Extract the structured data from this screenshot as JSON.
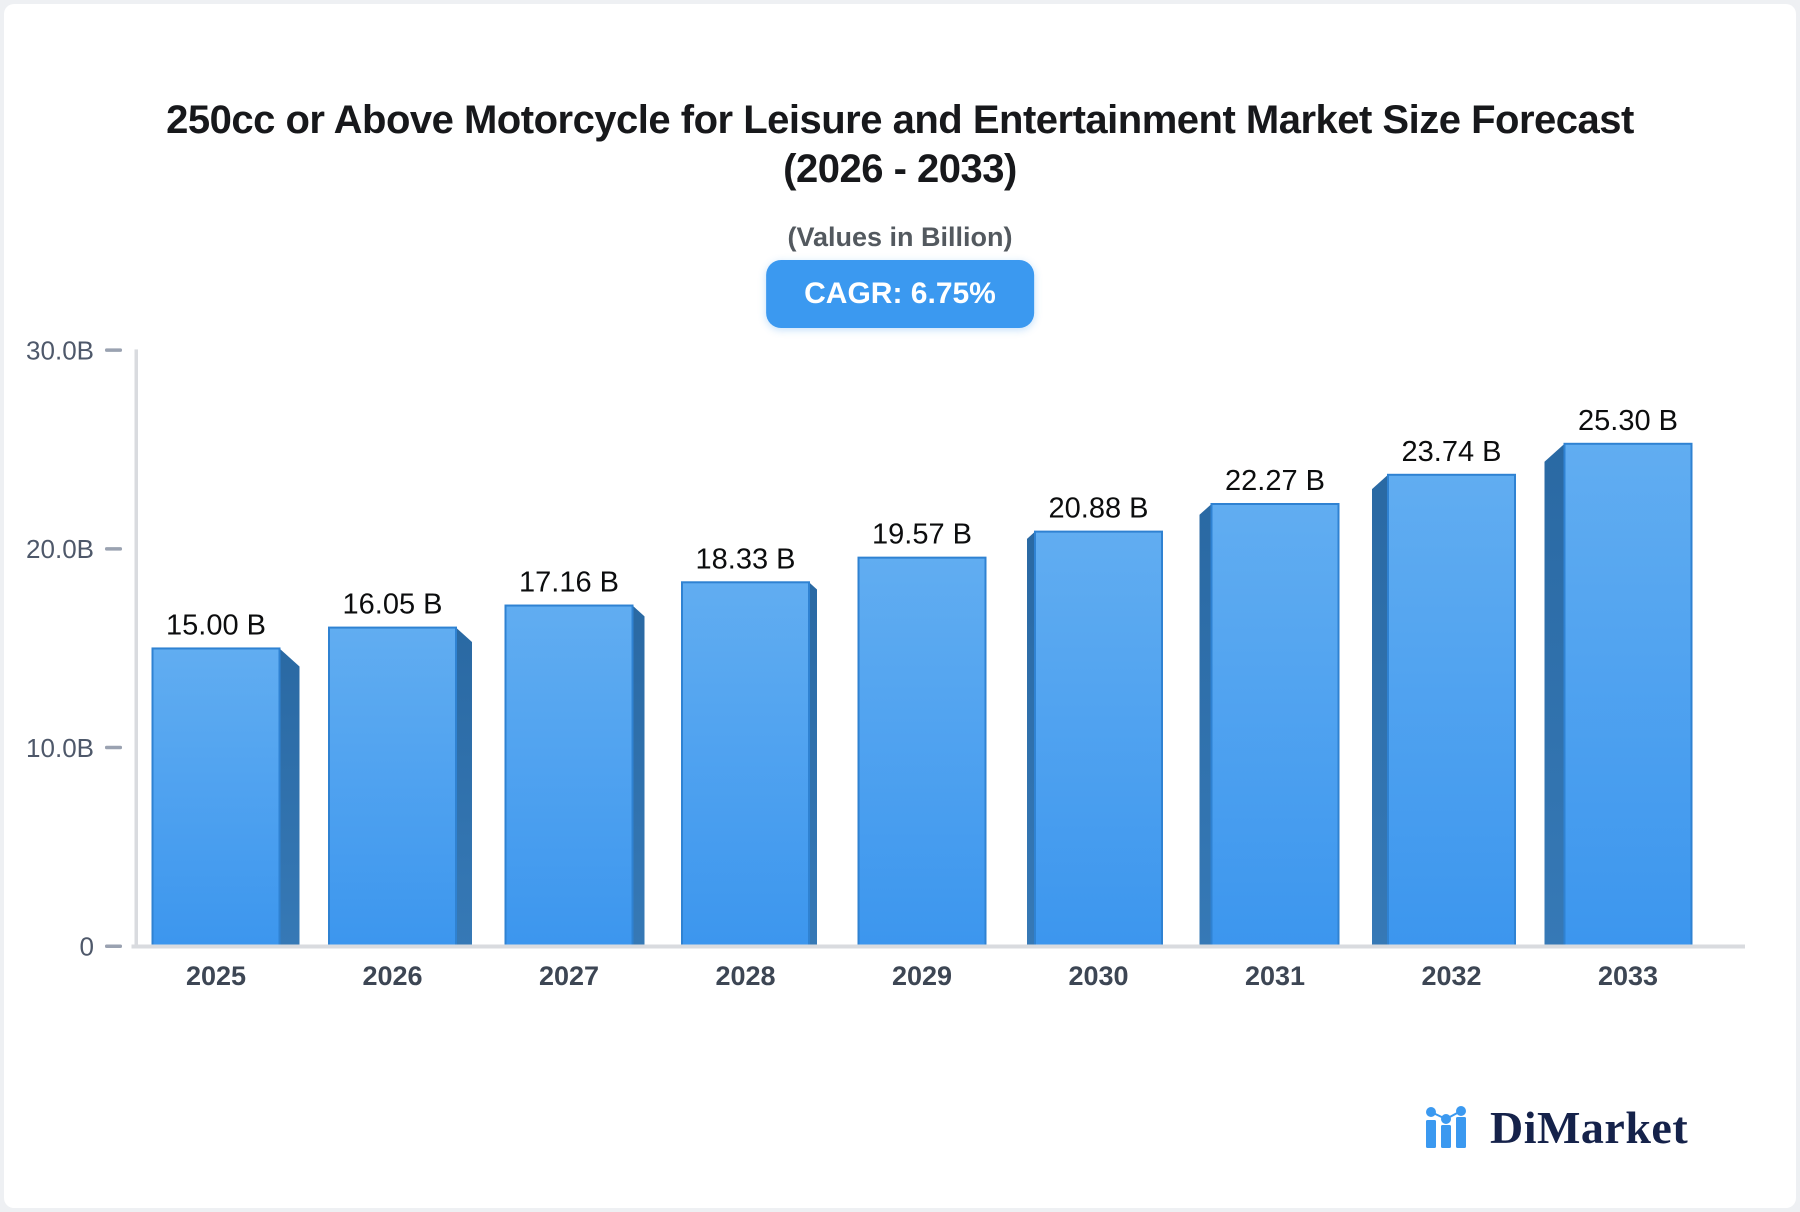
{
  "header": {
    "title_line1": "250cc or Above Motorcycle for Leisure and Entertainment Market Size Forecast",
    "title_line2": "(2026 - 2033)",
    "subtitle": "(Values in Billion)",
    "cagr_label": "CAGR: 6.75%"
  },
  "chart_data": {
    "type": "bar",
    "title": "250cc or Above Motorcycle for Leisure and Entertainment Market Size Forecast (2026 - 2033)",
    "units": "Billion",
    "categories": [
      "2025",
      "2026",
      "2027",
      "2028",
      "2029",
      "2030",
      "2031",
      "2032",
      "2033"
    ],
    "values": [
      15.0,
      16.05,
      17.16,
      18.33,
      19.57,
      20.88,
      22.27,
      23.74,
      25.3
    ],
    "value_labels": [
      "15.00 B",
      "16.05 B",
      "17.16 B",
      "18.33 B",
      "19.57 B",
      "20.88 B",
      "22.27 B",
      "23.74 B",
      "25.30 B"
    ],
    "xlabel": "",
    "ylabel": "",
    "ylim": [
      0,
      30
    ],
    "y_ticks": [
      {
        "label": "30.0B",
        "value": 30
      },
      {
        "label": "20.0B",
        "value": 20
      },
      {
        "label": "10.0B",
        "value": 10
      },
      {
        "label": "0",
        "value": 0
      }
    ],
    "grid": false,
    "legend": false,
    "cagr_percent": 6.75,
    "colors": {
      "accent": "#3b99f0",
      "bar_front_top": "#61adf1",
      "bar_front_bottom": "#3c96ee",
      "bar_border": "#2f82d2",
      "bar_side_top": "#2a69a3",
      "bar_side_bottom": "#3679b6",
      "axis_line": "#d9dbdf",
      "tick_dash": "#9aa2b1",
      "tick_text": "#4e586a",
      "x_label_text": "#3d4654",
      "value_text": "#0c0d0e"
    }
  },
  "logo": {
    "text": "DiMarket"
  }
}
